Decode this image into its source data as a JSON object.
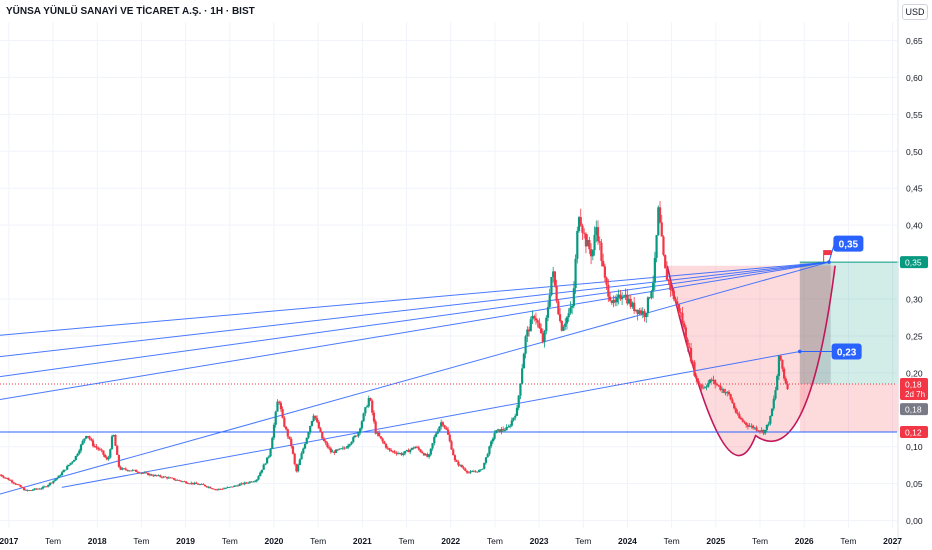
{
  "header": {
    "title": "YÜNSA YÜNLÜ SANAYİ VE TİCARET A.Ş. · 1H · BIST",
    "currency": "USD"
  },
  "chart_data": {
    "type": "candlestick",
    "x_range": [
      2016.9,
      2027.05
    ],
    "y_range": [
      -0.01,
      0.675
    ],
    "x_ticks": [
      {
        "t": 2017.0,
        "label": "2017"
      },
      {
        "t": 2017.5,
        "label": "Tem"
      },
      {
        "t": 2018.0,
        "label": "2018"
      },
      {
        "t": 2018.5,
        "label": "Tem"
      },
      {
        "t": 2019.0,
        "label": "2019"
      },
      {
        "t": 2019.5,
        "label": "Tem"
      },
      {
        "t": 2020.0,
        "label": "2020"
      },
      {
        "t": 2020.5,
        "label": "Tem"
      },
      {
        "t": 2021.0,
        "label": "2021"
      },
      {
        "t": 2021.5,
        "label": "Tem"
      },
      {
        "t": 2022.0,
        "label": "2022"
      },
      {
        "t": 2022.5,
        "label": "Tem"
      },
      {
        "t": 2023.0,
        "label": "2023"
      },
      {
        "t": 2023.5,
        "label": "Tem"
      },
      {
        "t": 2024.0,
        "label": "2024"
      },
      {
        "t": 2024.5,
        "label": "Tem"
      },
      {
        "t": 2025.0,
        "label": "2025"
      },
      {
        "t": 2025.5,
        "label": "Tem"
      },
      {
        "t": 2026.0,
        "label": "2026"
      },
      {
        "t": 2026.5,
        "label": "Tem"
      },
      {
        "t": 2027.0,
        "label": "2027"
      }
    ],
    "y_ticks": [
      {
        "v": 0.65,
        "label": "0,65"
      },
      {
        "v": 0.6,
        "label": "0,60"
      },
      {
        "v": 0.55,
        "label": "0,55"
      },
      {
        "v": 0.5,
        "label": "0,50"
      },
      {
        "v": 0.45,
        "label": "0,45"
      },
      {
        "v": 0.4,
        "label": "0,40"
      },
      {
        "v": 0.3,
        "label": "0,30"
      },
      {
        "v": 0.25,
        "label": "0,25"
      },
      {
        "v": 0.2,
        "label": "0,20"
      },
      {
        "v": 0.1,
        "label": "0,10"
      },
      {
        "v": 0.05,
        "label": "0,05"
      },
      {
        "v": 0.0,
        "label": "0,00"
      }
    ],
    "price_path": [
      [
        2016.9,
        0.062
      ],
      [
        2017.05,
        0.052
      ],
      [
        2017.2,
        0.04
      ],
      [
        2017.4,
        0.045
      ],
      [
        2017.55,
        0.058
      ],
      [
        2017.75,
        0.085
      ],
      [
        2017.88,
        0.118
      ],
      [
        2017.95,
        0.103
      ],
      [
        2018.05,
        0.093
      ],
      [
        2018.12,
        0.08
      ],
      [
        2018.18,
        0.12
      ],
      [
        2018.25,
        0.07
      ],
      [
        2018.4,
        0.068
      ],
      [
        2018.6,
        0.062
      ],
      [
        2018.8,
        0.058
      ],
      [
        2019.0,
        0.052
      ],
      [
        2019.2,
        0.048
      ],
      [
        2019.35,
        0.042
      ],
      [
        2019.5,
        0.045
      ],
      [
        2019.65,
        0.05
      ],
      [
        2019.8,
        0.055
      ],
      [
        2019.95,
        0.09
      ],
      [
        2020.05,
        0.168
      ],
      [
        2020.1,
        0.135
      ],
      [
        2020.2,
        0.1
      ],
      [
        2020.25,
        0.065
      ],
      [
        2020.35,
        0.105
      ],
      [
        2020.45,
        0.145
      ],
      [
        2020.55,
        0.11
      ],
      [
        2020.65,
        0.092
      ],
      [
        2020.8,
        0.098
      ],
      [
        2020.95,
        0.118
      ],
      [
        2021.08,
        0.168
      ],
      [
        2021.15,
        0.12
      ],
      [
        2021.3,
        0.095
      ],
      [
        2021.45,
        0.09
      ],
      [
        2021.6,
        0.1
      ],
      [
        2021.75,
        0.085
      ],
      [
        2021.82,
        0.115
      ],
      [
        2021.9,
        0.135
      ],
      [
        2021.96,
        0.12
      ],
      [
        2022.05,
        0.08
      ],
      [
        2022.2,
        0.065
      ],
      [
        2022.35,
        0.068
      ],
      [
        2022.5,
        0.12
      ],
      [
        2022.65,
        0.125
      ],
      [
        2022.75,
        0.15
      ],
      [
        2022.85,
        0.25
      ],
      [
        2022.95,
        0.28
      ],
      [
        2023.05,
        0.24
      ],
      [
        2023.15,
        0.34
      ],
      [
        2023.25,
        0.26
      ],
      [
        2023.38,
        0.29
      ],
      [
        2023.45,
        0.42
      ],
      [
        2023.52,
        0.38
      ],
      [
        2023.6,
        0.36
      ],
      [
        2023.65,
        0.4
      ],
      [
        2023.75,
        0.32
      ],
      [
        2023.85,
        0.29
      ],
      [
        2023.95,
        0.31
      ],
      [
        2024.05,
        0.29
      ],
      [
        2024.2,
        0.28
      ],
      [
        2024.3,
        0.33
      ],
      [
        2024.35,
        0.42
      ],
      [
        2024.42,
        0.34
      ],
      [
        2024.5,
        0.31
      ],
      [
        2024.6,
        0.28
      ],
      [
        2024.7,
        0.23
      ],
      [
        2024.78,
        0.19
      ],
      [
        2024.85,
        0.18
      ],
      [
        2024.95,
        0.19
      ],
      [
        2025.05,
        0.18
      ],
      [
        2025.15,
        0.17
      ],
      [
        2025.25,
        0.14
      ],
      [
        2025.35,
        0.13
      ],
      [
        2025.45,
        0.125
      ],
      [
        2025.55,
        0.12
      ],
      [
        2025.62,
        0.14
      ],
      [
        2025.68,
        0.18
      ],
      [
        2025.72,
        0.225
      ],
      [
        2025.78,
        0.19
      ],
      [
        2025.82,
        0.18
      ]
    ],
    "trend_lines": [
      {
        "from": [
          2016.9,
          0.251
        ],
        "to": [
          2026.28,
          0.35
        ]
      },
      {
        "from": [
          2016.9,
          0.222
        ],
        "to": [
          2026.28,
          0.35
        ]
      },
      {
        "from": [
          2016.9,
          0.195
        ],
        "to": [
          2026.28,
          0.35
        ]
      },
      {
        "from": [
          2016.9,
          0.164
        ],
        "to": [
          2026.28,
          0.35
        ]
      },
      {
        "from": [
          2016.9,
          0.036
        ],
        "to": [
          2026.28,
          0.35
        ]
      },
      {
        "from": [
          2017.6,
          0.045
        ],
        "to": [
          2025.95,
          0.229
        ]
      }
    ],
    "horizontal_lines": [
      {
        "v": 0.12,
        "color": "#2962ff"
      },
      {
        "v": 0.185,
        "color": "#f23645",
        "dotted": true
      }
    ],
    "position": {
      "x_start": 2025.95,
      "x_end": 2027.07,
      "entry": 0.185,
      "target": 0.35,
      "stop": 0.12,
      "grey_x_end": 2026.3
    },
    "cup": {
      "x_start": 2024.45,
      "x_end": 2026.35,
      "top_left": 0.345,
      "top_right": 0.345,
      "bottom": 0.115,
      "bottom_x": 2025.45
    },
    "axis_labels": {
      "target": {
        "label": "0,35",
        "color": "#089981"
      },
      "current": {
        "label": "0,18",
        "sub": "2d 7h",
        "color": "#f23645"
      },
      "previous": {
        "label": "0,18",
        "color": "#787b86"
      },
      "stop": {
        "label": "0,12",
        "color": "#f23645"
      }
    },
    "annotations": [
      {
        "label": "0,35",
        "x": 2026.5,
        "y": 0.375,
        "color": "#2962ff"
      },
      {
        "label": "0,23",
        "x": 2026.48,
        "y": 0.229,
        "color": "#2962ff"
      }
    ],
    "flag_color": "#f23645"
  }
}
